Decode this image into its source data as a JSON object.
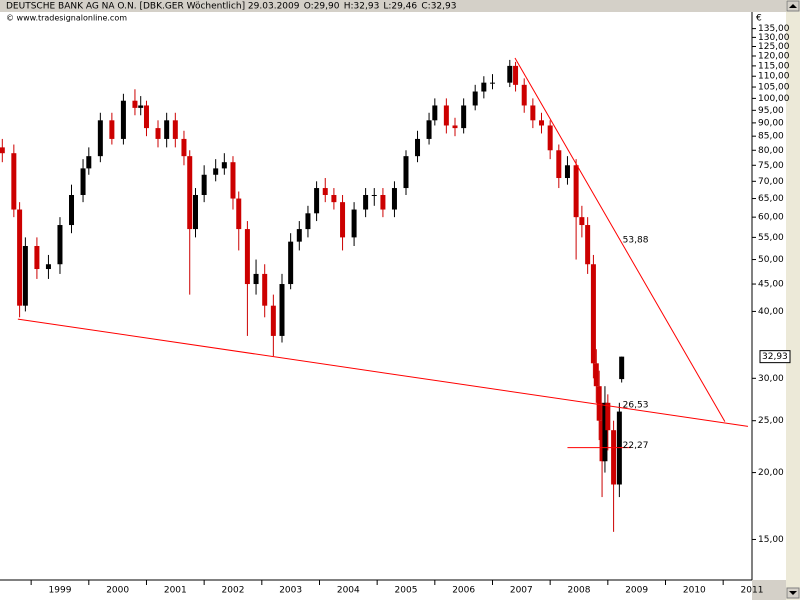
{
  "chart_data": {
    "type": "candlestick",
    "title": "DEUTSCHE BANK AG NA O.N. [DBK.GER  Wöchentlich] 29.03.2009",
    "ohlc_labels": [
      "O:29,90",
      "H:32,93",
      "L:29,46",
      "C:32,93"
    ],
    "subtitle": "© www.tradesignalonline.com",
    "currency": "€",
    "log_scale": true,
    "xlim": [
      1998.46,
      2011.5
    ],
    "xticks": [
      1999,
      2000,
      2001,
      2002,
      2003,
      2004,
      2005,
      2006,
      2007,
      2008,
      2009,
      2010,
      2011
    ],
    "ylim": [
      12.6,
      145
    ],
    "yticks": [
      {
        "value": 15,
        "label": "15,00"
      },
      {
        "value": 20,
        "label": "20,00"
      },
      {
        "value": 25,
        "label": "25,00"
      },
      {
        "value": 30,
        "label": "30,00"
      },
      {
        "value": 40,
        "label": "40,00"
      },
      {
        "value": 45,
        "label": "45,00"
      },
      {
        "value": 50,
        "label": "50,00"
      },
      {
        "value": 55,
        "label": "55,00"
      },
      {
        "value": 60,
        "label": "60,00"
      },
      {
        "value": 65,
        "label": "65,00"
      },
      {
        "value": 70,
        "label": "70,00"
      },
      {
        "value": 75,
        "label": "75,00"
      },
      {
        "value": 80,
        "label": "80,00"
      },
      {
        "value": 85,
        "label": "85,00"
      },
      {
        "value": 90,
        "label": "90,00"
      },
      {
        "value": 95,
        "label": "95,00"
      },
      {
        "value": 100,
        "label": "100,00"
      },
      {
        "value": 105,
        "label": "105,00"
      },
      {
        "value": 110,
        "label": "110,00"
      },
      {
        "value": 115,
        "label": "115,00"
      },
      {
        "value": 120,
        "label": "120,00"
      },
      {
        "value": 125,
        "label": "125,00"
      },
      {
        "value": 130,
        "label": "130,00"
      },
      {
        "value": 135,
        "label": "135,00"
      }
    ],
    "up_color": "#000000",
    "down_color": "#cc0000",
    "x": [
      1998.5,
      1998.7,
      1998.8,
      1998.9,
      1999.1,
      1999.3,
      1999.5,
      1999.7,
      1999.9,
      2000.0,
      2000.2,
      2000.4,
      2000.6,
      2000.8,
      2000.9,
      2001.0,
      2001.2,
      2001.35,
      2001.5,
      2001.65,
      2001.75,
      2001.85,
      2002.0,
      2002.2,
      2002.35,
      2002.5,
      2002.6,
      2002.75,
      2002.9,
      2003.05,
      2003.2,
      2003.35,
      2003.5,
      2003.65,
      2003.8,
      2003.95,
      2004.1,
      2004.25,
      2004.4,
      2004.6,
      2004.8,
      2004.95,
      2005.1,
      2005.3,
      2005.5,
      2005.7,
      2005.9,
      2006.0,
      2006.2,
      2006.35,
      2006.5,
      2006.7,
      2006.85,
      2007.0,
      2007.3,
      2007.4,
      2007.55,
      2007.7,
      2007.85,
      2008.0,
      2008.15,
      2008.3,
      2008.45,
      2008.55,
      2008.65,
      2008.75,
      2008.8,
      2008.85,
      2008.9,
      2008.95,
      2009.0,
      2009.1,
      2009.2,
      2009.24
    ],
    "open": [
      81,
      79,
      62,
      41,
      53,
      48,
      49,
      58,
      66,
      74,
      78,
      91,
      84,
      99,
      96,
      97,
      88,
      84,
      91,
      84,
      78,
      57,
      66,
      72,
      74,
      76,
      65,
      57,
      45,
      47,
      41,
      36,
      45,
      54,
      57,
      61,
      68,
      66,
      64,
      55,
      62,
      66,
      66,
      62,
      68,
      78,
      84,
      91,
      97,
      89,
      88,
      97,
      103,
      107,
      107,
      115,
      106,
      97,
      91,
      89,
      80,
      71,
      75,
      60,
      58,
      49,
      32,
      29,
      25,
      21,
      27,
      24,
      19,
      29.9
    ],
    "high": [
      84,
      82,
      64,
      55,
      55,
      51,
      60,
      69,
      77,
      81,
      94,
      94,
      102,
      104,
      101,
      99,
      91,
      94,
      94,
      87,
      80,
      68,
      75,
      77,
      79,
      78,
      67,
      59,
      50,
      49,
      43,
      47,
      56,
      59,
      63,
      70,
      71,
      68,
      66,
      64,
      68,
      68,
      68,
      70,
      80,
      87,
      94,
      100,
      100,
      92,
      100,
      106,
      110,
      111,
      118,
      117,
      109,
      100,
      94,
      91,
      82,
      78,
      77,
      63,
      60,
      51,
      34,
      31,
      27,
      29,
      28,
      25,
      27,
      32.93
    ],
    "low": [
      76,
      60,
      39,
      40,
      46,
      46,
      47,
      56,
      64,
      72,
      76,
      82,
      82,
      93,
      93,
      85,
      81,
      81,
      81,
      75,
      43,
      55,
      64,
      70,
      72,
      62,
      52,
      36,
      43,
      39,
      33,
      35,
      44,
      52,
      55,
      59,
      64,
      62,
      52,
      53,
      60,
      63,
      60,
      60,
      66,
      76,
      82,
      89,
      86,
      85,
      86,
      95,
      100,
      104,
      105,
      103,
      94,
      88,
      86,
      77,
      68,
      69,
      50,
      55,
      47,
      30,
      27,
      23,
      18,
      20,
      22,
      15.5,
      18,
      29.46
    ],
    "close": [
      79,
      62,
      41,
      53,
      48,
      49,
      58,
      66,
      74,
      78,
      91,
      84,
      99,
      96,
      97,
      88,
      84,
      91,
      84,
      78,
      57,
      66,
      72,
      74,
      76,
      65,
      57,
      45,
      47,
      41,
      36,
      45,
      54,
      57,
      61,
      68,
      66,
      64,
      55,
      62,
      66,
      66,
      62,
      68,
      78,
      84,
      91,
      97,
      89,
      88,
      97,
      103,
      107,
      107,
      115,
      106,
      97,
      91,
      89,
      80,
      71,
      75,
      60,
      58,
      49,
      32,
      29,
      25,
      21,
      27,
      24,
      19,
      26,
      32.93
    ],
    "trend_lines": [
      {
        "x": [
          1998.77,
          2011.43
        ],
        "values": [
          38.7,
          24.4
        ],
        "color": "#ff0000"
      },
      {
        "x": [
          2007.39,
          2011.03
        ],
        "values": [
          119,
          24.9
        ],
        "color": "#ff0000"
      },
      {
        "x": [
          2008.3,
          2009.4
        ],
        "values": [
          22.27,
          22.27
        ],
        "color": "#ff0000"
      }
    ],
    "annotations": [
      {
        "label": "53,88",
        "value": 53.88
      },
      {
        "label": "26,53",
        "value": 26.53
      },
      {
        "label": "22,27",
        "value": 22.27
      }
    ],
    "last_price": {
      "value": 32.93,
      "label": "32,93"
    }
  }
}
